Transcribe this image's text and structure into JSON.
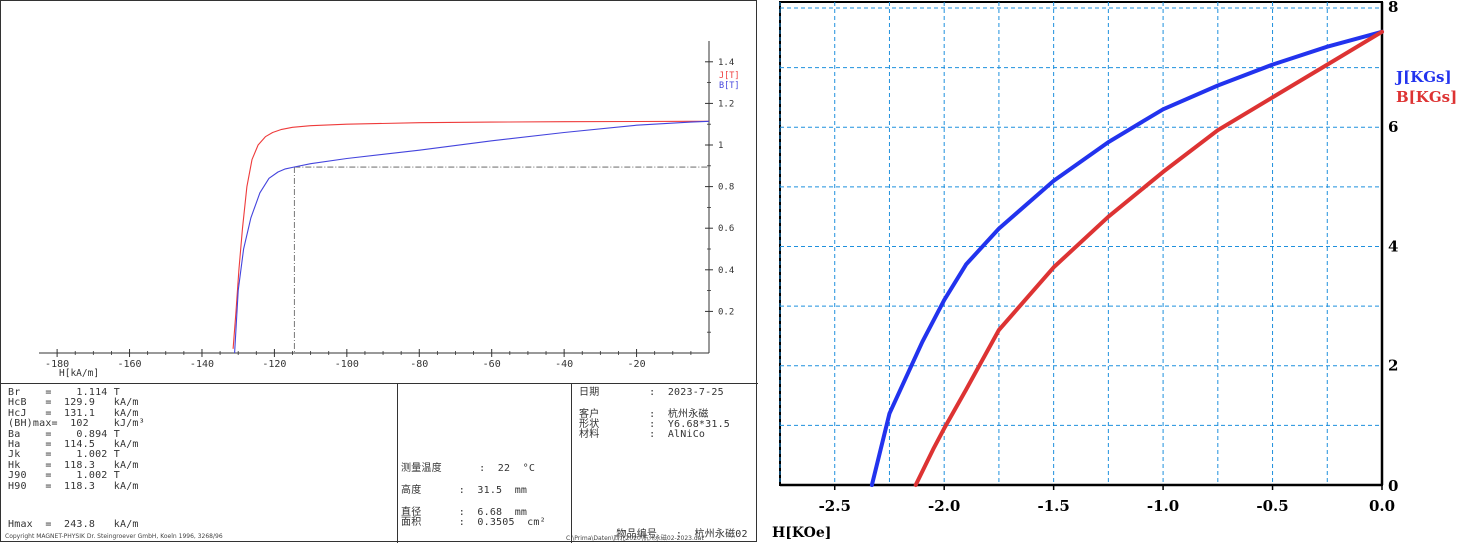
{
  "chart_data": [
    {
      "type": "line",
      "xlabel": "H[kA/m]",
      "x_ticks": [
        "-180",
        "-160",
        "-140",
        "-120",
        "-100",
        "-80",
        "-60",
        "-40",
        "-20"
      ],
      "y_ticks": [
        "1.4",
        "1.2",
        "1",
        "0.8",
        "0.6",
        "0.4",
        "0.2"
      ],
      "xlim": [
        -185,
        0
      ],
      "ylim": [
        0,
        1.5
      ],
      "grid": false,
      "legend": "top-right",
      "series": [
        {
          "name": "J[T]",
          "color": "#ee3b3b",
          "x": [
            -131.4,
            -130.6,
            -129.8,
            -128.8,
            -127.6,
            -126.2,
            -124.5,
            -122.5,
            -120.5,
            -118,
            -115,
            -110,
            -100,
            -80,
            -60,
            -40,
            -20,
            -5,
            0
          ],
          "y": [
            0.02,
            0.2,
            0.4,
            0.6,
            0.8,
            0.93,
            1.0,
            1.04,
            1.06,
            1.075,
            1.085,
            1.093,
            1.1,
            1.107,
            1.11,
            1.112,
            1.113,
            1.114,
            1.114
          ]
        },
        {
          "name": "B[T]",
          "color": "#4444dd",
          "x": [
            -131,
            -130,
            -128.5,
            -126.5,
            -124,
            -121.5,
            -119,
            -117,
            -114.5,
            -110,
            -100,
            -80,
            -60,
            -40,
            -20,
            -5,
            0
          ],
          "y": [
            0.0,
            0.3,
            0.5,
            0.65,
            0.77,
            0.84,
            0.87,
            0.885,
            0.894,
            0.91,
            0.935,
            0.975,
            1.02,
            1.06,
            1.095,
            1.11,
            1.114
          ]
        }
      ],
      "annotations": [
        {
          "type": "knee-dash",
          "x": -114.5,
          "y": 0.894
        }
      ]
    },
    {
      "type": "line",
      "xlabel": "H[KOe]",
      "x_ticks": [
        "-2.5",
        "-2.0",
        "-1.5",
        "-1.0",
        "-0.5",
        "0.0"
      ],
      "y_ticks": [
        "8",
        "6",
        "4",
        "2",
        "0"
      ],
      "xlim": [
        -2.75,
        0
      ],
      "ylim": [
        0,
        8.1
      ],
      "grid": true,
      "legend": "right",
      "series": [
        {
          "name": "J[KGs]",
          "color": "#2233ee",
          "x": [
            -2.33,
            -2.25,
            -2.1,
            -2.0,
            -1.9,
            -1.75,
            -1.5,
            -1.25,
            -1.0,
            -0.75,
            -0.5,
            -0.25,
            0
          ],
          "y": [
            0.0,
            1.2,
            2.4,
            3.1,
            3.7,
            4.3,
            5.1,
            5.75,
            6.3,
            6.7,
            7.05,
            7.35,
            7.6
          ]
        },
        {
          "name": "B[KGs]",
          "color": "#dd3333",
          "x": [
            -2.13,
            -2.05,
            -2.0,
            -1.9,
            -1.75,
            -1.5,
            -1.25,
            -1.0,
            -0.75,
            -0.5,
            -0.25,
            0
          ],
          "y": [
            0.0,
            0.6,
            0.95,
            1.6,
            2.6,
            3.65,
            4.5,
            5.25,
            5.95,
            6.5,
            7.05,
            7.6
          ]
        }
      ]
    }
  ],
  "params": {
    "left_rows": [
      "Br    =    1.114 T",
      "HcB   =  129.9   kA/m",
      "HcJ   =  131.1   kA/m",
      "(BH)max=  102    kJ/m³",
      "Ba    =    0.894 T",
      "Ha    =  114.5   kA/m",
      "Jk    =    1.002 T",
      "Hk    =  118.3   kA/m",
      "J90   =    1.002 T",
      "H90   =  118.3   kA/m"
    ],
    "hmax": "Hmax  =  243.8   kA/m",
    "mid_rows": [
      {
        "label": "测量温度",
        "value": ":  22  °C"
      },
      {
        "label": "高度",
        "value": ":  31.5  mm"
      },
      {
        "label": "直径",
        "value": ":  6.68  mm"
      },
      {
        "label": "面积",
        "value": ":  0.3505  cm²"
      }
    ],
    "right_rows": [
      {
        "label": "日期",
        "value": ":  2023-7-25"
      },
      {
        "label": "客户",
        "value": ":  杭州永磁"
      },
      {
        "label": "形状",
        "value": ":  Y6.68*31.5"
      },
      {
        "label": "材料",
        "value": ":  AlNiCo"
      }
    ],
    "sample_label": "物品编号",
    "sample_value": ":  杭州永磁02"
  },
  "footer": {
    "left": "Copyright MAGNET-PHYSIK Dr. Steingroever GmbH, Koeln 1996, 3268/96",
    "right": "C:\\Prima\\Daten\\西北2020\\杭州永磁02-2023.dat"
  }
}
